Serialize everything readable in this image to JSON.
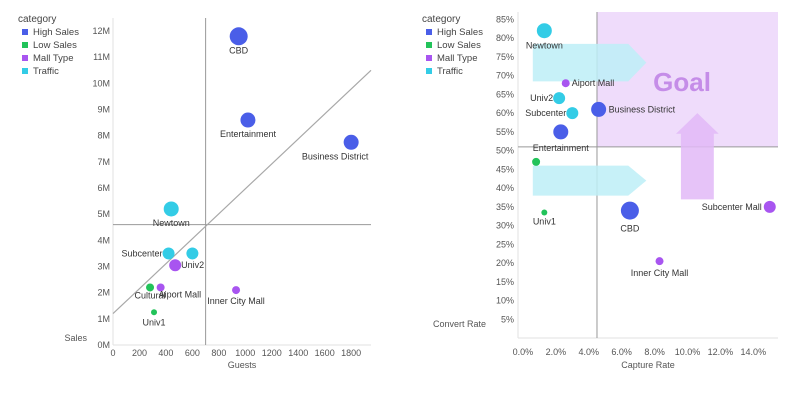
{
  "chart_data": [
    {
      "type": "scatter",
      "xlabel": "Guests",
      "ylabel": "Sales",
      "x_ticks": [
        "0",
        "200",
        "400",
        "600",
        "800",
        "1000",
        "1200",
        "1400",
        "1600",
        "1800"
      ],
      "y_ticks": [
        "0M",
        "1M",
        "2M",
        "3M",
        "4M",
        "5M",
        "6M",
        "7M",
        "8M",
        "9M",
        "10M",
        "11M",
        "12M"
      ],
      "xlim": [
        0,
        1950
      ],
      "ylim": [
        0,
        12.5
      ],
      "legend": {
        "title": "category",
        "position": "top-left",
        "items": [
          {
            "label": "High Sales",
            "color": "#4a5ee8"
          },
          {
            "label": "Low Sales",
            "color": "#22c35a"
          },
          {
            "label": "Mall Type",
            "color": "#a855f0"
          },
          {
            "label": "Traffic",
            "color": "#33cce6"
          }
        ]
      },
      "reference_lines": {
        "x": 700,
        "y": 4.6
      },
      "trendline": {
        "from": [
          0,
          1.2
        ],
        "to": [
          1950,
          10.5
        ]
      },
      "points": [
        {
          "label": "CBD",
          "x": 950,
          "y": 11.8,
          "category": "High Sales",
          "size": "large"
        },
        {
          "label": "Entertainment",
          "x": 1020,
          "y": 8.6,
          "category": "High Sales",
          "size": "medium"
        },
        {
          "label": "Business District",
          "x": 1800,
          "y": 7.75,
          "category": "High Sales",
          "size": "medium"
        },
        {
          "label": "Newtown",
          "x": 440,
          "y": 5.2,
          "category": "Traffic",
          "size": "medium"
        },
        {
          "label": "Subcenter",
          "x": 420,
          "y": 3.5,
          "category": "Traffic",
          "size": "small"
        },
        {
          "label": "",
          "x": 600,
          "y": 3.5,
          "category": "Traffic",
          "size": "small"
        },
        {
          "label": "Univ2",
          "x": 470,
          "y": 3.05,
          "category": "Mall Type",
          "size": "small"
        },
        {
          "label": "Aiport Mall",
          "x": 360,
          "y": 2.2,
          "category": "Mall Type",
          "size": "tiny"
        },
        {
          "label": "Cultural",
          "x": 280,
          "y": 2.2,
          "category": "Low Sales",
          "size": "tiny"
        },
        {
          "label": "Inner City Mall",
          "x": 930,
          "y": 2.1,
          "category": "Mall Type",
          "size": "tiny"
        },
        {
          "label": "Univ1",
          "x": 310,
          "y": 1.25,
          "category": "Low Sales",
          "size": "xtiny"
        }
      ]
    },
    {
      "type": "scatter",
      "xlabel": "Capture Rate",
      "ylabel": "Convert Rate",
      "x_ticks": [
        "0.0%",
        "2.0%",
        "4.0%",
        "6.0%",
        "8.0%",
        "10.0%",
        "12.0%",
        "14.0%"
      ],
      "y_ticks": [
        "5%",
        "10%",
        "15%",
        "20%",
        "25%",
        "30%",
        "35%",
        "40%",
        "45%",
        "50%",
        "55%",
        "60%",
        "65%",
        "70%",
        "75%",
        "80%",
        "85%"
      ],
      "xlim": [
        -0.3,
        15.5
      ],
      "ylim": [
        0,
        87
      ],
      "legend": {
        "title": "category",
        "position": "top-left",
        "items": [
          {
            "label": "High Sales",
            "color": "#4a5ee8"
          },
          {
            "label": "Low Sales",
            "color": "#22c35a"
          },
          {
            "label": "Mall Type",
            "color": "#a855f0"
          },
          {
            "label": "Traffic",
            "color": "#33cce6"
          }
        ]
      },
      "reference_lines": {
        "x": 4.5,
        "y": 51
      },
      "goal_region": {
        "x": [
          4.5,
          15.5
        ],
        "y": [
          51,
          87
        ],
        "label": "Goal"
      },
      "points": [
        {
          "label": "Newtown",
          "x": 1.3,
          "y": 82,
          "category": "Traffic",
          "size": "medium"
        },
        {
          "label": "Aiport Mall",
          "x": 2.6,
          "y": 68,
          "category": "Mall Type",
          "size": "tiny"
        },
        {
          "label": "Univ2",
          "x": 2.2,
          "y": 64,
          "category": "Traffic",
          "size": "small"
        },
        {
          "label": "Subcenter",
          "x": 3.0,
          "y": 60,
          "category": "Traffic",
          "size": "small"
        },
        {
          "label": "Business District",
          "x": 4.6,
          "y": 61,
          "category": "High Sales",
          "size": "medium"
        },
        {
          "label": "Entertainment",
          "x": 2.3,
          "y": 55,
          "category": "High Sales",
          "size": "medium"
        },
        {
          "label": "",
          "x": 0.8,
          "y": 47,
          "category": "Low Sales",
          "size": "tiny"
        },
        {
          "label": "Univ1",
          "x": 1.3,
          "y": 33.5,
          "category": "Low Sales",
          "size": "xtiny"
        },
        {
          "label": "CBD",
          "x": 6.5,
          "y": 34,
          "category": "High Sales",
          "size": "large"
        },
        {
          "label": "Subcenter Mall",
          "x": 15.0,
          "y": 35,
          "category": "Mall Type",
          "size": "small"
        },
        {
          "label": "Inner City Mall",
          "x": 8.3,
          "y": 20.5,
          "category": "Mall Type",
          "size": "tiny"
        }
      ]
    }
  ]
}
